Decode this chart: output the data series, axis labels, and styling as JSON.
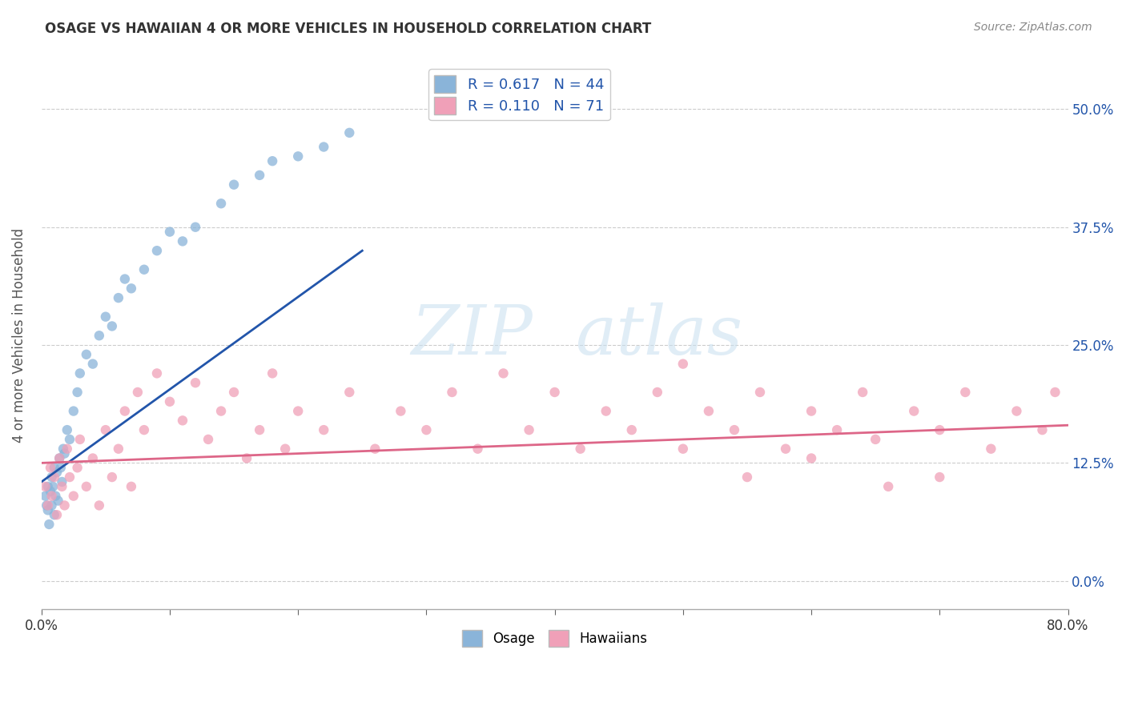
{
  "title": "OSAGE VS HAWAIIAN 4 OR MORE VEHICLES IN HOUSEHOLD CORRELATION CHART",
  "source": "Source: ZipAtlas.com",
  "ylabel": "4 or more Vehicles in Household",
  "xlim": [
    0.0,
    80.0
  ],
  "ylim": [
    -3.0,
    55.0
  ],
  "ylabel_ticks": [
    "0.0%",
    "12.5%",
    "25.0%",
    "37.5%",
    "50.0%"
  ],
  "ylabel_vals": [
    0.0,
    12.5,
    25.0,
    37.5,
    50.0
  ],
  "xlabel_ticks_pos": [
    0.0,
    10.0,
    20.0,
    30.0,
    40.0,
    50.0,
    60.0,
    70.0,
    80.0
  ],
  "xlabel_edge_labels": {
    "0": "0.0%",
    "80": "80.0%"
  },
  "osage_color": "#8ab4d9",
  "hawaiian_color": "#f0a0b8",
  "osage_line_color": "#2255aa",
  "hawaiian_line_color": "#dd6688",
  "background_color": "#ffffff",
  "grid_color": "#cccccc",
  "title_color": "#333333",
  "source_color": "#888888",
  "R_osage": 0.617,
  "N_osage": 44,
  "R_hawaiian": 0.11,
  "N_hawaiian": 71,
  "osage_line_x0": 0.0,
  "osage_line_y0": 10.5,
  "osage_line_x1": 25.0,
  "osage_line_y1": 35.0,
  "hawaiian_line_x0": 0.0,
  "hawaiian_line_y0": 12.5,
  "hawaiian_line_x1": 80.0,
  "hawaiian_line_y1": 16.5,
  "osage_x": [
    0.3,
    0.4,
    0.5,
    0.5,
    0.6,
    0.7,
    0.8,
    0.8,
    0.9,
    1.0,
    1.0,
    1.1,
    1.2,
    1.3,
    1.4,
    1.5,
    1.6,
    1.7,
    1.8,
    2.0,
    2.2,
    2.5,
    2.8,
    3.0,
    3.5,
    4.0,
    4.5,
    5.0,
    5.5,
    6.0,
    6.5,
    7.0,
    8.0,
    9.0,
    10.0,
    11.0,
    12.0,
    14.0,
    15.0,
    17.0,
    18.0,
    20.0,
    22.0,
    24.0
  ],
  "osage_y": [
    9.0,
    8.0,
    7.5,
    10.0,
    6.0,
    9.5,
    8.0,
    11.0,
    10.0,
    7.0,
    12.0,
    9.0,
    11.5,
    8.5,
    13.0,
    12.0,
    10.5,
    14.0,
    13.5,
    16.0,
    15.0,
    18.0,
    20.0,
    22.0,
    24.0,
    23.0,
    26.0,
    28.0,
    27.0,
    30.0,
    32.0,
    31.0,
    33.0,
    35.0,
    37.0,
    36.0,
    37.5,
    40.0,
    42.0,
    43.0,
    44.5,
    45.0,
    46.0,
    47.5
  ],
  "hawaiian_x": [
    0.3,
    0.5,
    0.7,
    0.8,
    1.0,
    1.2,
    1.4,
    1.6,
    1.8,
    2.0,
    2.2,
    2.5,
    2.8,
    3.0,
    3.5,
    4.0,
    4.5,
    5.0,
    5.5,
    6.0,
    6.5,
    7.0,
    7.5,
    8.0,
    9.0,
    10.0,
    11.0,
    12.0,
    13.0,
    14.0,
    15.0,
    16.0,
    17.0,
    18.0,
    19.0,
    20.0,
    22.0,
    24.0,
    26.0,
    28.0,
    30.0,
    32.0,
    34.0,
    36.0,
    38.0,
    40.0,
    42.0,
    44.0,
    46.0,
    48.0,
    50.0,
    52.0,
    54.0,
    56.0,
    58.0,
    60.0,
    62.0,
    64.0,
    66.0,
    68.0,
    70.0,
    72.0,
    74.0,
    76.0,
    78.0,
    79.0,
    50.0,
    55.0,
    60.0,
    65.0,
    70.0
  ],
  "hawaiian_y": [
    10.0,
    8.0,
    12.0,
    9.0,
    11.0,
    7.0,
    13.0,
    10.0,
    8.0,
    14.0,
    11.0,
    9.0,
    12.0,
    15.0,
    10.0,
    13.0,
    8.0,
    16.0,
    11.0,
    14.0,
    18.0,
    10.0,
    20.0,
    16.0,
    22.0,
    19.0,
    17.0,
    21.0,
    15.0,
    18.0,
    20.0,
    13.0,
    16.0,
    22.0,
    14.0,
    18.0,
    16.0,
    20.0,
    14.0,
    18.0,
    16.0,
    20.0,
    14.0,
    22.0,
    16.0,
    20.0,
    14.0,
    18.0,
    16.0,
    20.0,
    14.0,
    18.0,
    16.0,
    20.0,
    14.0,
    18.0,
    16.0,
    20.0,
    10.0,
    18.0,
    16.0,
    20.0,
    14.0,
    18.0,
    16.0,
    20.0,
    23.0,
    11.0,
    13.0,
    15.0,
    11.0
  ]
}
